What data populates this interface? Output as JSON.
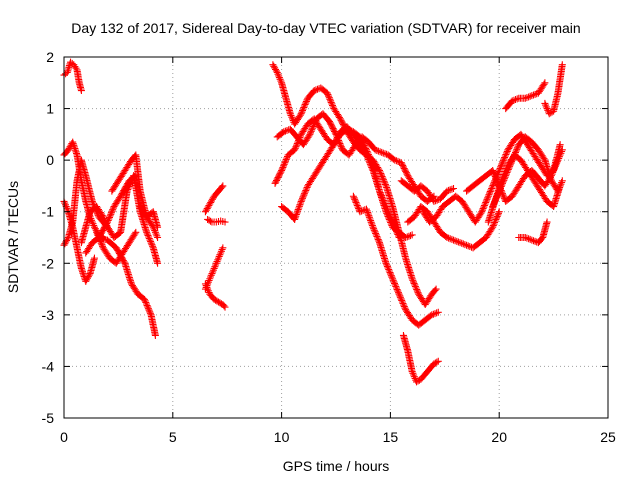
{
  "chart_data": {
    "type": "scatter",
    "title": "Day 132 of 2017, Sidereal Day-to-day VTEC variation (SDTVAR) for receiver main",
    "xlabel": "GPS time / hours",
    "ylabel": "SDTVAR / TECUs",
    "xlim": [
      0,
      25
    ],
    "ylim": [
      -5,
      2
    ],
    "xticks": [
      0,
      5,
      10,
      15,
      20,
      25
    ],
    "yticks": [
      -5,
      -4,
      -3,
      -2,
      -1,
      0,
      1,
      2
    ],
    "grid": true,
    "marker": "+",
    "marker_color": "#ff0000",
    "series": [
      {
        "x": [
          0.0,
          0.15,
          0.3,
          0.45,
          0.6,
          0.7,
          0.8
        ],
        "y": [
          1.65,
          1.7,
          1.9,
          1.85,
          1.75,
          1.5,
          1.35
        ]
      },
      {
        "x": [
          0.0,
          0.2,
          0.4,
          0.6,
          0.8,
          1.0,
          1.2,
          1.4,
          1.6,
          1.8
        ],
        "y": [
          0.1,
          0.2,
          0.35,
          0.1,
          -0.4,
          -0.8,
          -1.1,
          -1.3,
          -1.45,
          -1.5
        ]
      },
      {
        "x": [
          0.0,
          0.2,
          0.4,
          0.6,
          0.8,
          1.0,
          1.2,
          1.4
        ],
        "y": [
          -0.8,
          -1.0,
          -1.3,
          -1.7,
          -2.1,
          -2.35,
          -2.2,
          -1.9
        ]
      },
      {
        "x": [
          0.0,
          0.2,
          0.4,
          0.6,
          0.8,
          1.0,
          1.3,
          1.6,
          2.0
        ],
        "y": [
          -1.65,
          -1.5,
          -1.2,
          -0.4,
          0.0,
          -0.3,
          -0.8,
          -1.1,
          -1.3
        ]
      },
      {
        "x": [
          0.8,
          1.0,
          1.2,
          1.5,
          1.8,
          2.0,
          2.3,
          2.6,
          2.9,
          3.2,
          3.5,
          3.8,
          4.1,
          4.3
        ],
        "y": [
          -1.6,
          -1.3,
          -1.0,
          -0.9,
          -1.1,
          -1.3,
          -1.5,
          -1.4,
          -0.6,
          -0.3,
          -1.0,
          -1.4,
          -1.7,
          -2.0
        ]
      },
      {
        "x": [
          1.5,
          1.8,
          2.1,
          2.4,
          2.7,
          3.0,
          3.3
        ],
        "y": [
          -1.4,
          -1.7,
          -1.9,
          -2.0,
          -1.8,
          -1.6,
          -1.4
        ]
      },
      {
        "x": [
          2.2,
          2.5,
          2.8,
          3.1,
          3.3,
          3.5,
          3.8,
          4.1,
          4.3
        ],
        "y": [
          -0.6,
          -0.4,
          -0.2,
          0.0,
          0.1,
          -0.6,
          -1.1,
          -1.3,
          -1.5
        ]
      },
      {
        "x": [
          1.0,
          1.3,
          1.6,
          2.0,
          2.4,
          2.8,
          3.1,
          3.4,
          3.7,
          4.0,
          4.2
        ],
        "y": [
          -1.8,
          -1.6,
          -1.5,
          -1.55,
          -1.7,
          -2.0,
          -2.4,
          -2.6,
          -2.7,
          -3.0,
          -3.4
        ]
      },
      {
        "x": [
          1.6,
          2.0,
          2.3,
          2.6,
          3.0,
          3.3
        ],
        "y": [
          -1.5,
          -1.2,
          -0.9,
          -0.7,
          -0.4,
          -0.3
        ]
      },
      {
        "x": [
          3.5,
          3.8,
          4.1,
          4.3
        ],
        "y": [
          -0.9,
          -1.1,
          -1.0,
          -1.3
        ]
      },
      {
        "x": [
          6.5,
          6.7,
          6.9,
          7.1,
          7.3
        ],
        "y": [
          -1.0,
          -0.85,
          -0.7,
          -0.6,
          -0.5
        ]
      },
      {
        "x": [
          6.6,
          6.8,
          7.0,
          7.2,
          7.4
        ],
        "y": [
          -1.15,
          -1.2,
          -1.2,
          -1.18,
          -1.2
        ]
      },
      {
        "x": [
          6.5,
          6.7,
          6.9,
          7.1,
          7.3
        ],
        "y": [
          -2.5,
          -2.3,
          -2.1,
          -1.9,
          -1.7
        ]
      },
      {
        "x": [
          6.5,
          6.7,
          6.9,
          7.1,
          7.3,
          7.4
        ],
        "y": [
          -2.4,
          -2.6,
          -2.7,
          -2.75,
          -2.8,
          -2.85
        ]
      },
      {
        "x": [
          9.6,
          9.8,
          10.0,
          10.2,
          10.4,
          10.6,
          10.9,
          11.2,
          11.5,
          11.8,
          12.1,
          12.4,
          12.7,
          13.0,
          13.3,
          13.6,
          13.9,
          14.2,
          14.5,
          14.8,
          15.1,
          15.4,
          15.7,
          16.0,
          16.3,
          16.6,
          16.9,
          17.1
        ],
        "y": [
          1.85,
          1.7,
          1.5,
          1.2,
          0.9,
          0.7,
          0.9,
          1.2,
          1.35,
          1.4,
          1.3,
          1.0,
          0.8,
          0.55,
          0.35,
          0.2,
          0.1,
          0.0,
          -0.2,
          -0.5,
          -0.9,
          -1.4,
          -1.9,
          -2.3,
          -2.6,
          -2.8,
          -2.6,
          -2.5
        ]
      },
      {
        "x": [
          9.8,
          10.1,
          10.4,
          10.7,
          11.0,
          11.3,
          11.6,
          11.9,
          12.2,
          12.5,
          12.8,
          13.1,
          13.4,
          13.7,
          14.0,
          14.3,
          14.6,
          14.9,
          15.2,
          15.5,
          15.8,
          16.1,
          16.4,
          16.7,
          17.0
        ],
        "y": [
          0.45,
          0.55,
          0.6,
          0.45,
          0.3,
          0.5,
          0.8,
          0.9,
          0.75,
          0.5,
          0.2,
          0.1,
          0.3,
          0.45,
          0.35,
          0.2,
          0.15,
          0.1,
          0.0,
          -0.05,
          -0.3,
          -0.5,
          -0.7,
          -0.8,
          -0.7
        ]
      },
      {
        "x": [
          9.7,
          10.0,
          10.3,
          10.6,
          10.9,
          11.2,
          11.5,
          11.8,
          12.1,
          12.4,
          12.7,
          13.0,
          13.3,
          13.6,
          13.9,
          14.2,
          14.5,
          14.8,
          15.1,
          15.4
        ],
        "y": [
          -0.45,
          -0.2,
          0.1,
          0.2,
          0.5,
          0.7,
          0.8,
          0.6,
          0.4,
          0.3,
          0.55,
          0.65,
          0.5,
          0.3,
          0.1,
          -0.2,
          -0.6,
          -0.9,
          -1.2,
          -1.5
        ]
      },
      {
        "x": [
          10.0,
          10.3,
          10.6,
          10.9,
          11.2,
          11.5,
          11.8,
          12.1,
          12.4,
          12.7,
          13.0,
          13.3,
          13.6,
          13.9,
          14.2,
          14.5,
          14.8,
          15.1,
          15.4,
          15.7,
          16.0
        ],
        "y": [
          -0.9,
          -1.0,
          -1.15,
          -0.8,
          -0.5,
          -0.3,
          -0.1,
          0.1,
          0.3,
          0.5,
          0.6,
          0.55,
          0.45,
          0.2,
          -0.1,
          -0.6,
          -1.0,
          -1.3,
          -1.4,
          -1.5,
          -1.45
        ]
      },
      {
        "x": [
          13.3,
          13.6,
          13.9,
          14.2,
          14.5,
          14.8,
          15.1,
          15.4,
          15.7,
          16.0,
          16.3,
          16.6,
          16.9,
          17.2
        ],
        "y": [
          -0.7,
          -1.0,
          -0.95,
          -1.3,
          -1.6,
          -2.0,
          -2.3,
          -2.6,
          -2.9,
          -3.1,
          -3.2,
          -3.1,
          -3.0,
          -2.95
        ]
      },
      {
        "x": [
          15.6,
          15.8,
          16.0,
          16.2,
          16.4,
          16.6,
          16.8,
          17.0,
          17.2
        ],
        "y": [
          -3.4,
          -3.7,
          -4.1,
          -4.3,
          -4.25,
          -4.15,
          -4.05,
          -3.95,
          -3.9
        ]
      },
      {
        "x": [
          15.5,
          15.8,
          16.1,
          16.4,
          16.7,
          17.0,
          17.3,
          17.6,
          17.9
        ],
        "y": [
          -0.4,
          -0.5,
          -0.6,
          -0.5,
          -0.6,
          -0.8,
          -0.75,
          -0.6,
          -0.55
        ]
      },
      {
        "x": [
          15.8,
          16.1,
          16.4,
          16.7,
          17.0,
          17.3,
          17.6,
          17.9,
          18.2,
          18.5,
          18.8,
          19.1,
          19.4,
          19.7,
          20.0
        ],
        "y": [
          -1.2,
          -1.1,
          -0.9,
          -1.0,
          -1.2,
          -1.4,
          -1.5,
          -1.55,
          -1.6,
          -1.65,
          -1.7,
          -1.6,
          -1.5,
          -1.3,
          -1.0
        ]
      },
      {
        "x": [
          16.5,
          16.8,
          17.1,
          17.4,
          17.7,
          18.0,
          18.3,
          18.6,
          18.9,
          19.2,
          19.5,
          19.8,
          20.1,
          20.4,
          20.7,
          21.0,
          21.3,
          21.6,
          21.9,
          22.2,
          22.5,
          22.8
        ],
        "y": [
          -1.0,
          -1.2,
          -1.1,
          -0.9,
          -0.8,
          -0.7,
          -0.8,
          -1.0,
          -1.2,
          -1.0,
          -0.7,
          -0.4,
          -0.1,
          0.2,
          0.4,
          0.5,
          0.3,
          0.1,
          -0.1,
          -0.3,
          -0.2,
          0.3
        ]
      },
      {
        "x": [
          18.5,
          18.8,
          19.1,
          19.4,
          19.7,
          20.0,
          20.3,
          20.6,
          20.9,
          21.2,
          21.5,
          21.8,
          22.1,
          22.4,
          22.7,
          22.9
        ],
        "y": [
          -0.6,
          -0.5,
          -0.4,
          -0.3,
          -0.2,
          -0.5,
          -0.8,
          -0.7,
          -0.5,
          -0.3,
          -0.2,
          -0.35,
          -0.5,
          -0.3,
          0.0,
          0.2
        ]
      },
      {
        "x": [
          19.5,
          19.8,
          20.1,
          20.4,
          20.7,
          21.0,
          21.3,
          21.6,
          21.9,
          22.2,
          22.5,
          22.8
        ],
        "y": [
          -1.2,
          -0.8,
          -0.4,
          -0.1,
          0.1,
          0.0,
          -0.2,
          -0.4,
          -0.6,
          -0.8,
          -0.9,
          -0.5
        ]
      },
      {
        "x": [
          19.7,
          20.0,
          20.3,
          20.6,
          20.9,
          21.2,
          21.5,
          21.8,
          22.1,
          22.4,
          22.7,
          22.9
        ],
        "y": [
          -0.9,
          -0.6,
          -0.3,
          0.0,
          0.3,
          0.45,
          0.35,
          0.2,
          0.0,
          -0.4,
          -0.6,
          -0.4
        ]
      },
      {
        "x": [
          20.3,
          20.6,
          20.9,
          21.2,
          21.5,
          21.8,
          22.1
        ],
        "y": [
          1.0,
          1.15,
          1.2,
          1.2,
          1.25,
          1.3,
          1.5
        ]
      },
      {
        "x": [
          22.1,
          22.3,
          22.5,
          22.7,
          22.9
        ],
        "y": [
          1.1,
          0.9,
          0.95,
          1.3,
          1.85
        ]
      },
      {
        "x": [
          20.9,
          21.2,
          21.5,
          21.8,
          22.0,
          22.2
        ],
        "y": [
          -1.5,
          -1.5,
          -1.55,
          -1.6,
          -1.5,
          -1.2
        ]
      }
    ]
  }
}
